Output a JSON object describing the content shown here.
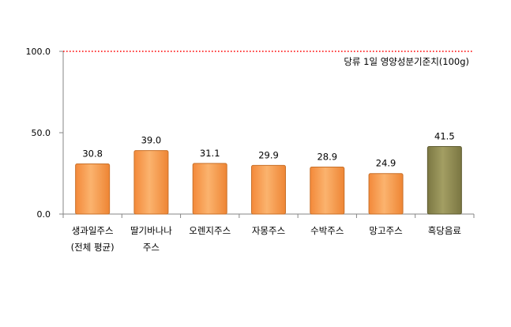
{
  "chart_data": {
    "type": "bar",
    "categories": [
      [
        "생과일주스",
        "(전체 평균)"
      ],
      [
        "딸기바나나",
        "주스"
      ],
      [
        "오렌지주스"
      ],
      [
        "자몽주스"
      ],
      [
        "수박주스"
      ],
      [
        "망고주스"
      ],
      [
        "흑당음료"
      ]
    ],
    "values": [
      30.8,
      39.0,
      31.1,
      29.9,
      28.9,
      24.9,
      41.5
    ],
    "value_labels": [
      "30.8",
      "39.0",
      "31.1",
      "29.9",
      "28.9",
      "24.9",
      "41.5"
    ],
    "bar_colors": [
      "#f79a46",
      "#f79a46",
      "#f79a46",
      "#f79a46",
      "#f79a46",
      "#f79a46",
      "#8c8850"
    ],
    "bar_border_colors": [
      "#c8712a",
      "#c8712a",
      "#c8712a",
      "#c8712a",
      "#c8712a",
      "#c8712a",
      "#5e5b30"
    ],
    "ylim": [
      0,
      100
    ],
    "yticks": [
      0,
      50,
      100
    ],
    "ytick_labels": [
      "0.0",
      "50.0",
      "100.0"
    ],
    "reference_line": {
      "value": 100,
      "label": "당류 1일 영양성분기준치(100g)",
      "color": "#ff0000",
      "style": "dotted"
    },
    "grid": false,
    "legend": "none"
  }
}
